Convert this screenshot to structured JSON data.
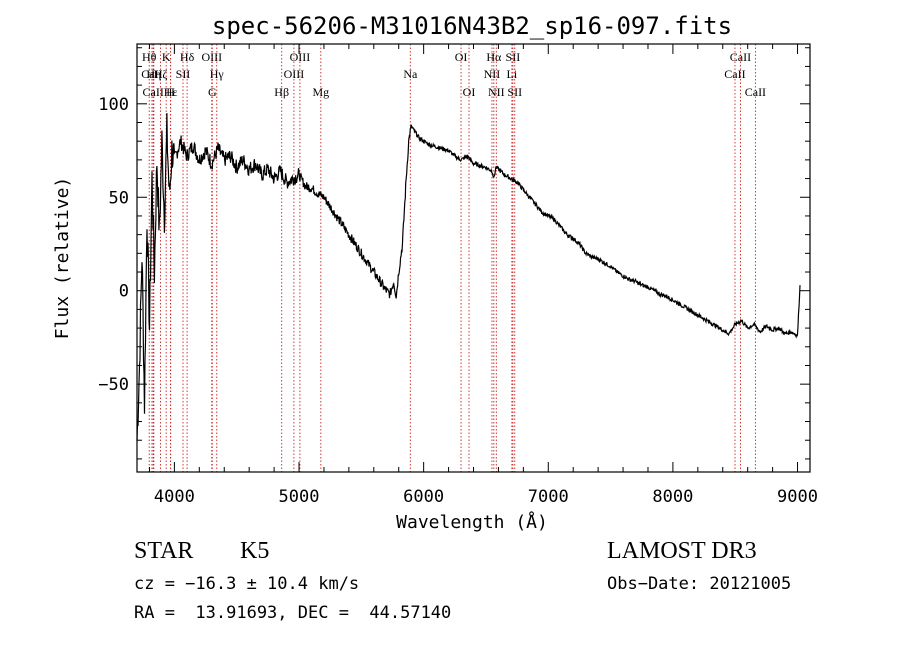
{
  "chart_data": {
    "type": "line",
    "title": "spec-56206-M31016N43B2_sp16-097.fits",
    "xlabel": "Wavelength (Å)",
    "ylabel": "Flux (relative)",
    "xlim": [
      3700,
      9100
    ],
    "ylim": [
      -97,
      132
    ],
    "xticks": [
      4000,
      5000,
      6000,
      7000,
      8000,
      9000
    ],
    "yticks": [
      -50,
      0,
      50,
      100
    ],
    "xtick_labels": [
      "4000",
      "5000",
      "6000",
      "7000",
      "8000",
      "9000"
    ],
    "ytick_labels": [
      "−50",
      "0",
      "50",
      "100"
    ],
    "series": [
      {
        "name": "flux",
        "x": [
          3700,
          3720,
          3740,
          3760,
          3780,
          3800,
          3820,
          3840,
          3860,
          3880,
          3900,
          3920,
          3940,
          3960,
          3980,
          4000,
          4050,
          4100,
          4150,
          4200,
          4250,
          4300,
          4350,
          4400,
          4450,
          4500,
          4550,
          4600,
          4650,
          4700,
          4750,
          4800,
          4850,
          4900,
          4950,
          5000,
          5050,
          5100,
          5150,
          5200,
          5250,
          5300,
          5350,
          5400,
          5450,
          5500,
          5550,
          5600,
          5650,
          5700,
          5730,
          5760,
          5780,
          5800,
          5830,
          5860,
          5880,
          5900,
          5930,
          5960,
          6000,
          6050,
          6100,
          6150,
          6200,
          6250,
          6300,
          6350,
          6400,
          6450,
          6500,
          6550,
          6563,
          6580,
          6600,
          6650,
          6700,
          6750,
          6800,
          6850,
          6900,
          6950,
          7000,
          7050,
          7100,
          7150,
          7200,
          7250,
          7300,
          7350,
          7400,
          7450,
          7500,
          7550,
          7600,
          7650,
          7700,
          7750,
          7800,
          7850,
          7900,
          7950,
          8000,
          8050,
          8100,
          8150,
          8200,
          8250,
          8300,
          8350,
          8400,
          8450,
          8500,
          8550,
          8600,
          8650,
          8700,
          8750,
          8800,
          8850,
          8900,
          8950,
          9000,
          9020
        ],
        "values": [
          -80,
          -40,
          20,
          -60,
          40,
          -20,
          60,
          10,
          70,
          30,
          80,
          40,
          85,
          50,
          75,
          70,
          80,
          72,
          78,
          70,
          75,
          68,
          76,
          70,
          72,
          66,
          70,
          65,
          68,
          62,
          65,
          60,
          64,
          58,
          60,
          62,
          56,
          55,
          52,
          50,
          45,
          40,
          35,
          30,
          25,
          20,
          15,
          10,
          5,
          0,
          -2,
          5,
          -3,
          10,
          25,
          60,
          80,
          88,
          85,
          82,
          80,
          78,
          77,
          76,
          75,
          72,
          70,
          72,
          68,
          67,
          66,
          64,
          60,
          66,
          65,
          62,
          60,
          58,
          54,
          50,
          46,
          42,
          40,
          38,
          34,
          30,
          28,
          25,
          20,
          18,
          17,
          15,
          13,
          10,
          8,
          6,
          5,
          3,
          2,
          0,
          -2,
          -3,
          -5,
          -7,
          -9,
          -11,
          -13,
          -15,
          -17,
          -19,
          -21,
          -23,
          -18,
          -16,
          -20,
          -18,
          -22,
          -19,
          -21,
          -20,
          -23,
          -22,
          -24,
          3
        ]
      }
    ],
    "line_markers": [
      {
        "label": "Hθ",
        "x": 3798,
        "row": 1
      },
      {
        "label": "CaII",
        "x": 3820,
        "row": 2
      },
      {
        "label": "CaII",
        "x": 3830,
        "row": 3
      },
      {
        "label": "Hη",
        "x": 3835,
        "row": 2
      },
      {
        "label": "Hζ",
        "x": 3889,
        "row": 2
      },
      {
        "label": "K",
        "x": 3934,
        "row": 1
      },
      {
        "label": "H",
        "x": 3969,
        "row": 3
      },
      {
        "label": "Hε",
        "x": 3970,
        "row": 3
      },
      {
        "label": "SII",
        "x": 4069,
        "row": 2
      },
      {
        "label": "Hδ",
        "x": 4102,
        "row": 1
      },
      {
        "label": "OIII",
        "x": 4300,
        "row": 1
      },
      {
        "label": "Hγ",
        "x": 4340,
        "row": 2
      },
      {
        "label": "G",
        "x": 4304,
        "row": 3
      },
      {
        "label": "Hβ",
        "x": 4861,
        "row": 3
      },
      {
        "label": "OIII",
        "x": 4959,
        "row": 2
      },
      {
        "label": "OIII",
        "x": 5007,
        "row": 1
      },
      {
        "label": "Mg",
        "x": 5175,
        "row": 3
      },
      {
        "label": "Na",
        "x": 5893,
        "row": 2
      },
      {
        "label": "OI",
        "x": 6300,
        "row": 1
      },
      {
        "label": "OI",
        "x": 6364,
        "row": 3
      },
      {
        "label": "Hα",
        "x": 6563,
        "row": 1
      },
      {
        "label": "NII",
        "x": 6548,
        "row": 2
      },
      {
        "label": "NII",
        "x": 6583,
        "row": 3
      },
      {
        "label": "SII",
        "x": 6716,
        "row": 1
      },
      {
        "label": "Li",
        "x": 6708,
        "row": 2
      },
      {
        "label": "SII",
        "x": 6731,
        "row": 3
      },
      {
        "label": "CaII",
        "x": 8498,
        "row": 2
      },
      {
        "label": "CaII",
        "x": 8542,
        "row": 1
      },
      {
        "label": "CaII",
        "x": 8662,
        "row": 3
      }
    ]
  },
  "info": {
    "object_class": "STAR",
    "subclass": "K5",
    "survey": "LAMOST DR3",
    "cz": "cz = −16.3 ± 10.4 km/s",
    "obs_date": "Obs−Date: 20121005",
    "radec": "RA =  13.91693, DEC =  44.57140"
  },
  "colors": {
    "axis": "#000000",
    "spectrum": "#000000",
    "marker": "#cc2222"
  }
}
